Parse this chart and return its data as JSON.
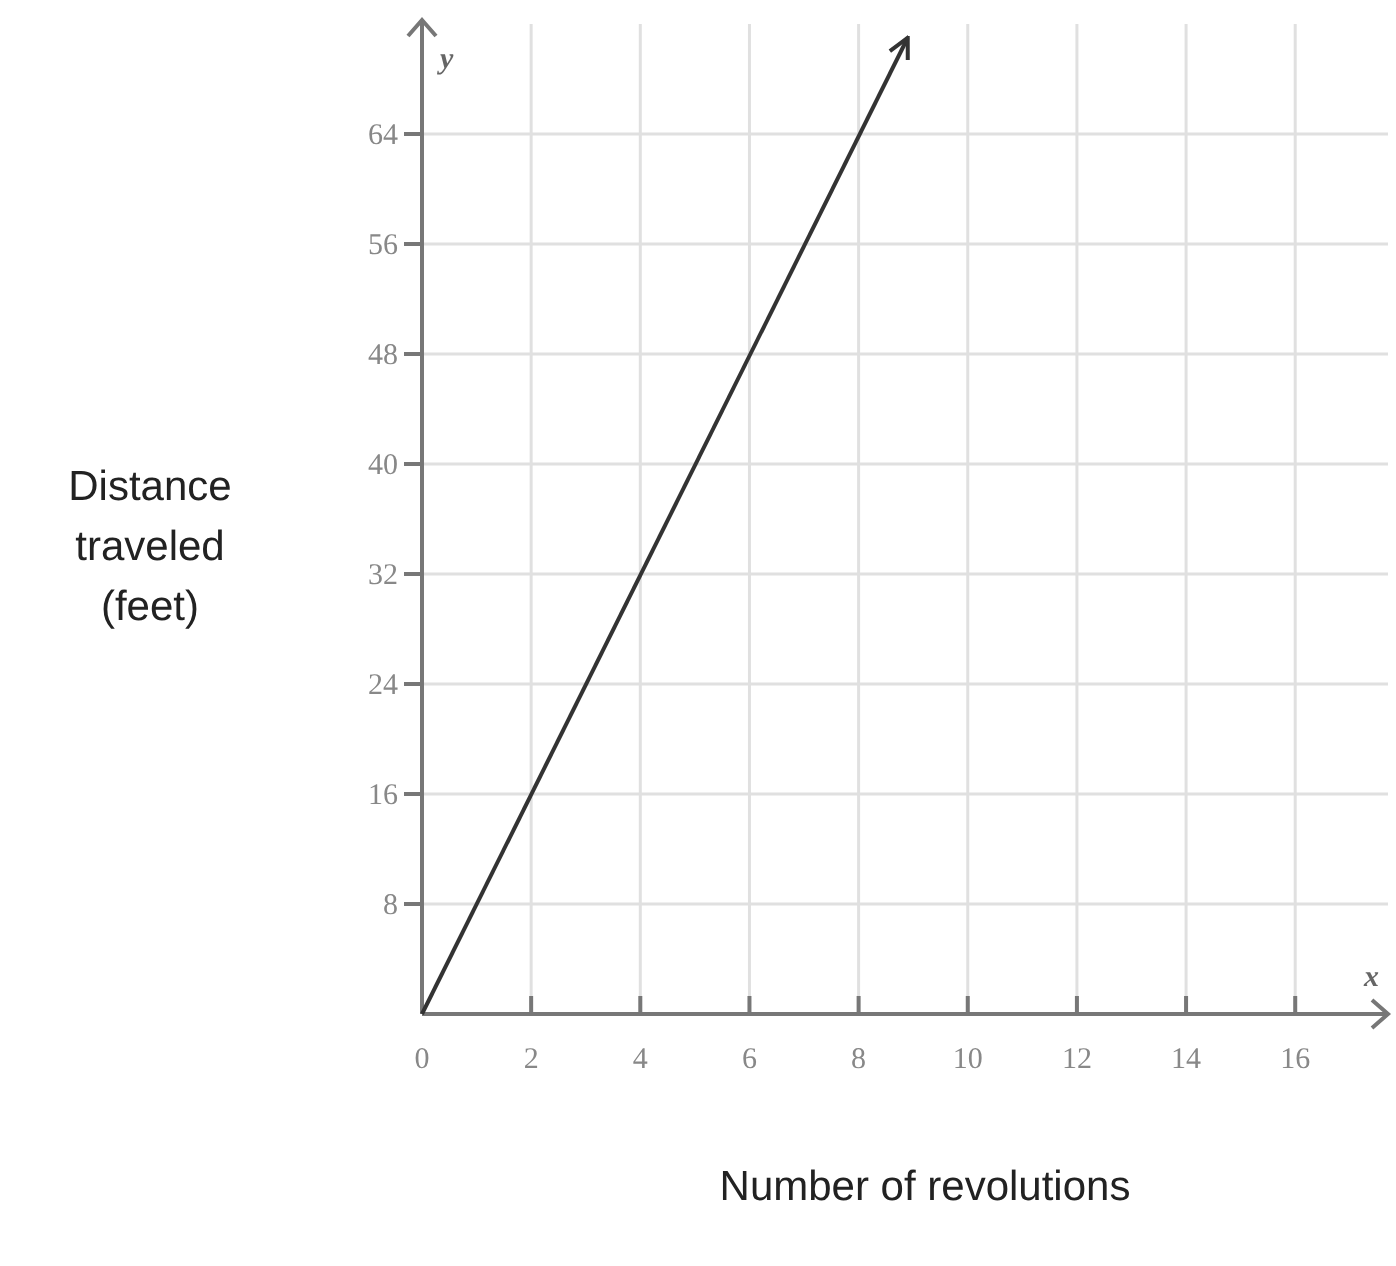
{
  "chart_data": {
    "type": "line",
    "xlabel": "Number of revolutions",
    "ylabel": "Distance traveled (feet)",
    "annotations": [
      "x",
      "y"
    ],
    "xlim": [
      0,
      17.7
    ],
    "ylim": [
      0,
      72
    ],
    "xticks": [
      0,
      2,
      4,
      6,
      8,
      10,
      12,
      14,
      16
    ],
    "yticks": [
      8,
      16,
      24,
      32,
      40,
      48,
      56,
      64
    ],
    "grid": true,
    "marker": "none",
    "line_style": "solid",
    "series": [
      {
        "color": "#333333",
        "x": [
          0,
          8.9
        ],
        "values": [
          0,
          71
        ]
      }
    ]
  }
}
